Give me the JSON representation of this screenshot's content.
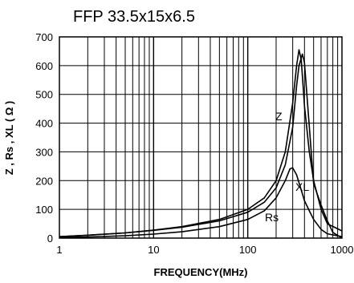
{
  "chart_data": {
    "type": "line",
    "title": "FFP 33.5x15x6.5",
    "xlabel": "FREQUENCY(MHz)",
    "ylabel": "Z , Rs , XL ( Ω )",
    "xscale": "log",
    "xlim": [
      1,
      1000
    ],
    "ylim": [
      0,
      700
    ],
    "grid": true,
    "x_ticks": [
      "1",
      "10",
      "100",
      "1000"
    ],
    "y_ticks": [
      "0",
      "100",
      "200",
      "300",
      "400",
      "500",
      "600",
      "700"
    ],
    "series": [
      {
        "name": "Z",
        "x": [
          1,
          2,
          5,
          10,
          20,
          50,
          100,
          150,
          200,
          250,
          300,
          330,
          350,
          370,
          400,
          450,
          500,
          600,
          700,
          1000
        ],
        "y": [
          5,
          10,
          18,
          28,
          40,
          65,
          100,
          140,
          200,
          300,
          470,
          600,
          655,
          620,
          460,
          300,
          200,
          100,
          50,
          25
        ]
      },
      {
        "name": "XL",
        "x": [
          1,
          2,
          5,
          10,
          20,
          50,
          100,
          150,
          200,
          250,
          300,
          330,
          350,
          380,
          400,
          500,
          600,
          700,
          800,
          1000
        ],
        "y": [
          5,
          10,
          18,
          27,
          38,
          60,
          90,
          125,
          175,
          255,
          385,
          530,
          600,
          640,
          610,
          190,
          115,
          60,
          20,
          -10
        ]
      },
      {
        "name": "Rs",
        "x": [
          1,
          2,
          5,
          10,
          20,
          50,
          100,
          150,
          200,
          250,
          280,
          300,
          330,
          360,
          400,
          450,
          500,
          600,
          700,
          1000
        ],
        "y": [
          2,
          4,
          8,
          14,
          22,
          40,
          65,
          95,
          140,
          200,
          240,
          245,
          220,
          180,
          130,
          95,
          65,
          30,
          15,
          5
        ]
      }
    ],
    "annotations": [
      "Z",
      "XL",
      "Rs"
    ]
  }
}
